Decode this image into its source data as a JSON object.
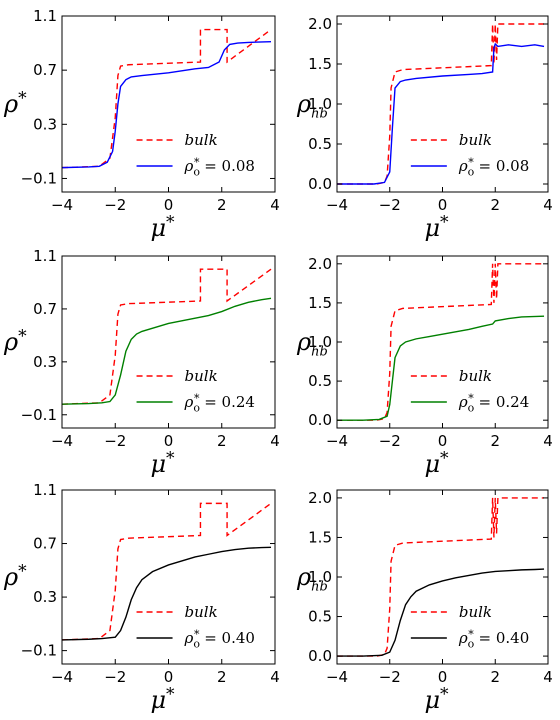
{
  "chart_data": [
    {
      "type": "line",
      "xlabel": "μ*",
      "ylabel": "ρ*",
      "xlim": [
        -4,
        4
      ],
      "ylim": [
        -0.2,
        1.1
      ],
      "xticks": [
        -4,
        -2,
        0,
        2,
        4
      ],
      "xtick_labels": [
        "−4",
        "−2",
        "0",
        "2",
        "4"
      ],
      "yticks": [
        -0.1,
        0.3,
        0.7,
        1.1
      ],
      "ytick_labels": [
        "−0.1",
        "0.3",
        "0.7",
        "1.1"
      ],
      "legend_position": "lower-right",
      "series": [
        {
          "name": "bulk",
          "color": "#ff0000",
          "style": "dashed",
          "x": [
            -4,
            -2.6,
            -2.2,
            -2.0,
            -1.9,
            -1.8,
            -1.5,
            1.2,
            1.2,
            2.2,
            2.2,
            3.85
          ],
          "y": [
            -0.02,
            -0.01,
            0.05,
            0.35,
            0.66,
            0.73,
            0.74,
            0.76,
            1.0,
            1.0,
            0.76,
            1.0
          ]
        },
        {
          "name": "ρo* = 0.08",
          "color": "#0000ff",
          "style": "solid",
          "x": [
            -4,
            -3,
            -2.6,
            -2.3,
            -2.1,
            -2.0,
            -1.9,
            -1.8,
            -1.6,
            -1.4,
            -1.0,
            0,
            1.0,
            1.5,
            1.9,
            2.1,
            2.3,
            2.6,
            3.0,
            3.85
          ],
          "y": [
            -0.02,
            -0.015,
            -0.01,
            0.02,
            0.1,
            0.25,
            0.45,
            0.58,
            0.63,
            0.65,
            0.66,
            0.68,
            0.71,
            0.72,
            0.76,
            0.85,
            0.89,
            0.9,
            0.905,
            0.91
          ]
        }
      ]
    },
    {
      "type": "line",
      "xlabel": "μ*",
      "ylabel": "ρhb",
      "xlim": [
        -4,
        4
      ],
      "ylim": [
        -0.1,
        2.1
      ],
      "xticks": [
        -4,
        -2,
        0,
        2,
        4
      ],
      "xtick_labels": [
        "−4",
        "−2",
        "0",
        "2",
        "4"
      ],
      "yticks": [
        0.0,
        0.5,
        1.0,
        1.5,
        2.0
      ],
      "ytick_labels": [
        "0.0",
        "0.5",
        "1.0",
        "1.5",
        "2.0"
      ],
      "legend_position": "lower-right",
      "series": [
        {
          "name": "bulk",
          "color": "#ff0000",
          "style": "dashed",
          "x": [
            -4,
            -2.5,
            -2.2,
            -2.1,
            -2.0,
            -1.95,
            -1.8,
            -1.5,
            1.85,
            1.9,
            1.95,
            2.0,
            2.05,
            2.1,
            3.85
          ],
          "y": [
            0.0,
            0.0,
            0.02,
            0.1,
            0.6,
            1.2,
            1.4,
            1.43,
            1.48,
            2.0,
            1.5,
            2.0,
            1.55,
            2.0,
            2.0
          ]
        },
        {
          "name": "ρo* = 0.08",
          "color": "#0000ff",
          "style": "solid",
          "x": [
            -4,
            -2.6,
            -2.2,
            -2.0,
            -1.9,
            -1.8,
            -1.6,
            -1.4,
            -1.0,
            0,
            1.0,
            1.5,
            1.9,
            1.95,
            2.0,
            2.1,
            2.5,
            3.0,
            3.5,
            3.85
          ],
          "y": [
            0.0,
            0.0,
            0.02,
            0.15,
            0.7,
            1.2,
            1.28,
            1.3,
            1.32,
            1.35,
            1.37,
            1.38,
            1.4,
            1.7,
            1.75,
            1.72,
            1.74,
            1.72,
            1.74,
            1.72
          ]
        }
      ]
    },
    {
      "type": "line",
      "xlabel": "μ*",
      "ylabel": "ρ*",
      "xlim": [
        -4,
        4
      ],
      "ylim": [
        -0.2,
        1.1
      ],
      "xticks": [
        -4,
        -2,
        0,
        2,
        4
      ],
      "xtick_labels": [
        "−4",
        "−2",
        "0",
        "2",
        "4"
      ],
      "yticks": [
        -0.1,
        0.3,
        0.7,
        1.1
      ],
      "ytick_labels": [
        "−0.1",
        "0.3",
        "0.7",
        "1.1"
      ],
      "legend_position": "lower-right",
      "series": [
        {
          "name": "bulk",
          "color": "#ff0000",
          "style": "dashed",
          "x": [
            -4,
            -2.6,
            -2.2,
            -2.0,
            -1.9,
            -1.8,
            -1.5,
            1.2,
            1.2,
            2.2,
            2.2,
            3.85
          ],
          "y": [
            -0.02,
            -0.01,
            0.05,
            0.35,
            0.66,
            0.73,
            0.74,
            0.76,
            1.0,
            1.0,
            0.76,
            1.0
          ]
        },
        {
          "name": "ρo* = 0.24",
          "color": "#008000",
          "style": "solid",
          "x": [
            -4,
            -3,
            -2.5,
            -2.2,
            -2.0,
            -1.8,
            -1.6,
            -1.4,
            -1.2,
            -1.0,
            -0.5,
            0,
            0.5,
            1.0,
            1.5,
            2.0,
            2.5,
            3.0,
            3.5,
            3.85
          ],
          "y": [
            -0.02,
            -0.015,
            -0.01,
            0.0,
            0.05,
            0.2,
            0.38,
            0.47,
            0.51,
            0.53,
            0.56,
            0.59,
            0.61,
            0.63,
            0.65,
            0.68,
            0.72,
            0.75,
            0.77,
            0.78
          ]
        }
      ]
    },
    {
      "type": "line",
      "xlabel": "μ*",
      "ylabel": "ρhb",
      "xlim": [
        -4,
        4
      ],
      "ylim": [
        -0.1,
        2.1
      ],
      "xticks": [
        -4,
        -2,
        0,
        2,
        4
      ],
      "xtick_labels": [
        "−4",
        "−2",
        "0",
        "2",
        "4"
      ],
      "yticks": [
        0.0,
        0.5,
        1.0,
        1.5,
        2.0
      ],
      "ytick_labels": [
        "0.0",
        "0.5",
        "1.0",
        "1.5",
        "2.0"
      ],
      "legend_position": "lower-right",
      "series": [
        {
          "name": "bulk",
          "color": "#ff0000",
          "style": "dashed",
          "x": [
            -4,
            -2.5,
            -2.2,
            -2.1,
            -2.0,
            -1.95,
            -1.8,
            -1.5,
            1.85,
            1.9,
            1.95,
            2.0,
            2.05,
            2.1,
            3.85
          ],
          "y": [
            0.0,
            0.0,
            0.02,
            0.1,
            0.6,
            1.2,
            1.4,
            1.43,
            1.48,
            2.0,
            1.5,
            2.0,
            1.55,
            2.0,
            2.0
          ]
        },
        {
          "name": "ρo* = 0.24",
          "color": "#008000",
          "style": "solid",
          "x": [
            -4,
            -3,
            -2.4,
            -2.1,
            -2.0,
            -1.9,
            -1.8,
            -1.6,
            -1.4,
            -1.0,
            -0.5,
            0,
            0.5,
            1.0,
            1.5,
            1.9,
            2.0,
            2.5,
            3.0,
            3.85
          ],
          "y": [
            0.0,
            0.0,
            0.01,
            0.05,
            0.2,
            0.5,
            0.8,
            0.95,
            1.0,
            1.04,
            1.07,
            1.1,
            1.13,
            1.16,
            1.2,
            1.23,
            1.27,
            1.3,
            1.32,
            1.33
          ]
        }
      ]
    },
    {
      "type": "line",
      "xlabel": "μ*",
      "ylabel": "ρ*",
      "xlim": [
        -4,
        4
      ],
      "ylim": [
        -0.2,
        1.1
      ],
      "xticks": [
        -4,
        -2,
        0,
        2,
        4
      ],
      "xtick_labels": [
        "−4",
        "−2",
        "0",
        "2",
        "4"
      ],
      "yticks": [
        -0.1,
        0.3,
        0.7,
        1.1
      ],
      "ytick_labels": [
        "−0.1",
        "0.3",
        "0.7",
        "1.1"
      ],
      "legend_position": "lower-right",
      "series": [
        {
          "name": "bulk",
          "color": "#ff0000",
          "style": "dashed",
          "x": [
            -4,
            -2.6,
            -2.2,
            -2.0,
            -1.9,
            -1.8,
            -1.5,
            1.2,
            1.2,
            2.2,
            2.2,
            3.85
          ],
          "y": [
            -0.02,
            -0.01,
            0.05,
            0.35,
            0.66,
            0.73,
            0.74,
            0.76,
            1.0,
            1.0,
            0.76,
            1.0
          ]
        },
        {
          "name": "ρo* = 0.40",
          "color": "#000000",
          "style": "solid",
          "x": [
            -4,
            -3,
            -2.5,
            -2.0,
            -1.8,
            -1.6,
            -1.4,
            -1.2,
            -1.0,
            -0.6,
            0,
            0.5,
            1.0,
            1.5,
            2.0,
            2.5,
            3.0,
            3.5,
            3.85
          ],
          "y": [
            -0.02,
            -0.015,
            -0.01,
            0.0,
            0.05,
            0.15,
            0.28,
            0.37,
            0.43,
            0.49,
            0.54,
            0.57,
            0.6,
            0.62,
            0.64,
            0.655,
            0.665,
            0.67,
            0.672
          ]
        }
      ]
    },
    {
      "type": "line",
      "xlabel": "μ*",
      "ylabel": "ρhb",
      "xlim": [
        -4,
        4
      ],
      "ylim": [
        -0.1,
        2.1
      ],
      "xticks": [
        -4,
        -2,
        0,
        2,
        4
      ],
      "xtick_labels": [
        "−4",
        "−2",
        "0",
        "2",
        "4"
      ],
      "yticks": [
        0.0,
        0.5,
        1.0,
        1.5,
        2.0
      ],
      "ytick_labels": [
        "0.0",
        "0.5",
        "1.0",
        "1.5",
        "2.0"
      ],
      "legend_position": "lower-right",
      "series": [
        {
          "name": "bulk",
          "color": "#ff0000",
          "style": "dashed",
          "x": [
            -4,
            -2.5,
            -2.2,
            -2.1,
            -2.0,
            -1.95,
            -1.8,
            -1.5,
            1.85,
            1.9,
            1.95,
            2.0,
            2.05,
            2.1,
            3.85
          ],
          "y": [
            0.0,
            0.0,
            0.02,
            0.1,
            0.6,
            1.2,
            1.4,
            1.43,
            1.48,
            2.0,
            1.5,
            2.0,
            1.55,
            2.0,
            2.0
          ]
        },
        {
          "name": "ρo* = 0.40",
          "color": "#000000",
          "style": "solid",
          "x": [
            -4,
            -3,
            -2.3,
            -2.0,
            -1.8,
            -1.6,
            -1.4,
            -1.2,
            -1.0,
            -0.5,
            0,
            0.5,
            1.0,
            1.5,
            2.0,
            2.5,
            3.0,
            3.5,
            3.85
          ],
          "y": [
            0.0,
            0.0,
            0.01,
            0.05,
            0.2,
            0.45,
            0.65,
            0.75,
            0.82,
            0.9,
            0.95,
            0.99,
            1.02,
            1.05,
            1.07,
            1.08,
            1.09,
            1.095,
            1.1
          ]
        }
      ]
    }
  ]
}
